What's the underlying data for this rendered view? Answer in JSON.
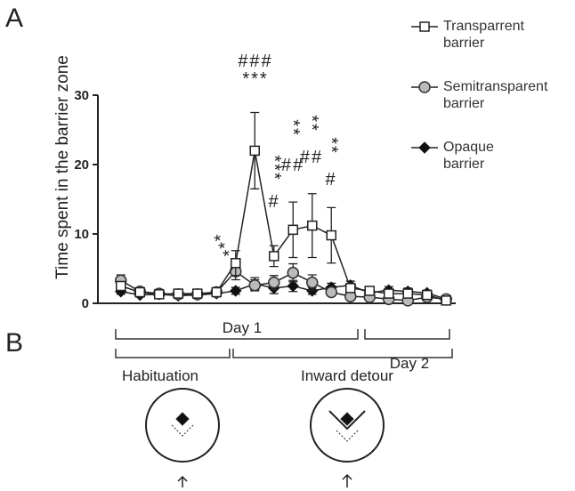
{
  "panels": [
    "A",
    "B"
  ],
  "chart_data": {
    "type": "line",
    "y_label": "Time spent in the barrier zone",
    "categories": [
      null,
      null,
      null,
      null,
      null,
      null,
      null,
      null,
      null,
      null,
      null,
      null,
      null,
      null,
      null,
      null,
      null,
      null
    ],
    "series": [
      {
        "name": "Transparrent barrier",
        "color": "#222222",
        "marker": "square",
        "values": [
          2.5,
          1.6,
          1.3,
          1.4,
          1.4,
          1.6,
          5.8,
          22,
          6.8,
          10.6,
          11.2,
          9.8,
          2.2,
          1.8,
          1.4,
          1.4,
          1.2,
          0.4
        ],
        "errors": [
          0.6,
          0.4,
          0.3,
          0.3,
          0.3,
          0.4,
          1.8,
          5.5,
          1.5,
          4,
          4.6,
          4,
          0.6,
          0.5,
          0.4,
          0.4,
          0.4,
          0.2
        ]
      },
      {
        "name": "Semitransparent barrier",
        "color": "#bbbbbb",
        "marker": "circle",
        "values": [
          3.3,
          1.7,
          1.4,
          1.3,
          1.3,
          1.6,
          4.6,
          2.6,
          3.0,
          4.4,
          3.0,
          1.6,
          1.0,
          0.9,
          0.6,
          0.4,
          0.9,
          0.6
        ],
        "errors": [
          0.8,
          0.4,
          0.3,
          0.3,
          0.3,
          0.4,
          1.2,
          0.8,
          1.0,
          1.3,
          1.1,
          0.5,
          0.4,
          0.3,
          0.3,
          0.2,
          0.3,
          0.2
        ]
      },
      {
        "name": "Opaque barrier",
        "color": "#111111",
        "marker": "diamond",
        "values": [
          1.7,
          1.2,
          1.3,
          1.1,
          1.2,
          1.4,
          1.8,
          2.8,
          2.2,
          2.5,
          1.8,
          2.3,
          2.6,
          1.5,
          1.9,
          1.7,
          1.5,
          0.6
        ],
        "errors": [
          0.4,
          0.3,
          0.3,
          0.3,
          0.3,
          0.3,
          0.5,
          0.9,
          0.8,
          0.8,
          0.5,
          0.6,
          0.6,
          0.8,
          0.5,
          0.5,
          0.4,
          0.2
        ]
      }
    ],
    "ylim": [
      0,
      30
    ],
    "yticks": [
      0,
      10,
      20,
      30
    ],
    "annotations": [
      "***",
      "###",
      "***",
      "***",
      "#",
      "**",
      "##",
      "**",
      "##",
      "**",
      "#"
    ]
  },
  "timeline": {
    "days": [
      "Day 1",
      "Day 2"
    ],
    "phases": [
      "Habituation",
      "Inward detour"
    ]
  }
}
